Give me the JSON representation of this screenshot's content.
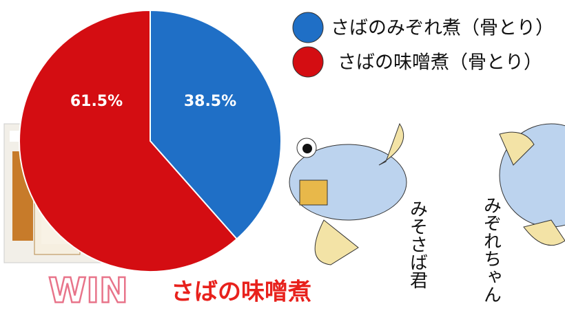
{
  "chart_data": {
    "type": "pie",
    "categories": [
      "さばのみぞれ煮（骨とり）",
      "さばの味噌煮（骨とり）"
    ],
    "values": [
      38.5,
      61.5
    ],
    "value_labels": [
      "38.5%",
      "61.5%"
    ],
    "colors": [
      "#1f6fc6",
      "#d40d12"
    ],
    "annotations": [
      "WIN",
      "さばの味噌煮",
      "みそさば君",
      "みぞれちゃん"
    ]
  }
}
